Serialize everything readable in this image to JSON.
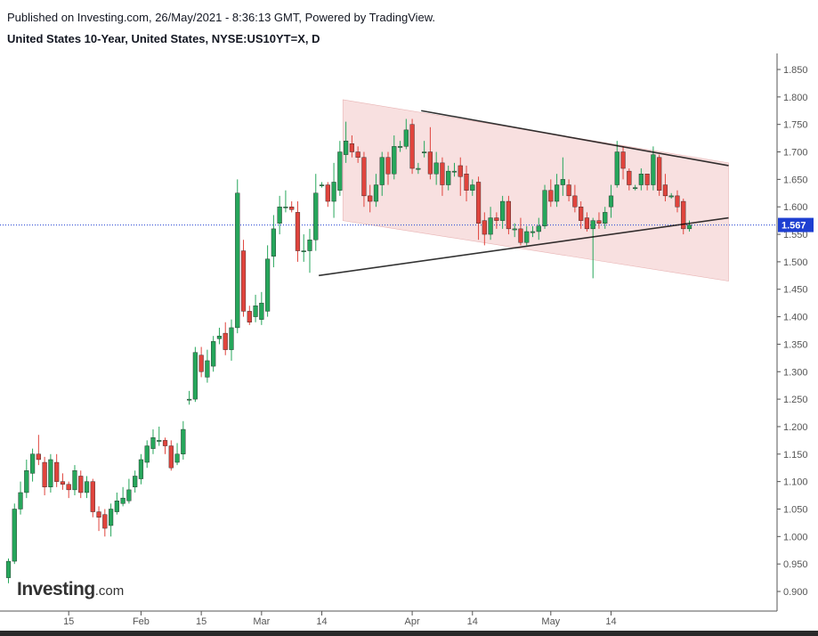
{
  "header": {
    "published_line": "Published on Investing.com, 26/May/2021 - 8:36:13 GMT, Powered by TradingView.",
    "symbol_line": "United States 10-Year, United States, NYSE:US10YT=X, D"
  },
  "logo": {
    "word": "Investing",
    "suffix": ".com"
  },
  "colors": {
    "up": "#26a65b",
    "down": "#e0443d",
    "channel_fill": "#f5d5d5",
    "price_line": "#1e3fd1",
    "price_label_bg": "#1e3fd1",
    "trendline": "#000000",
    "axis_text": "#555555"
  },
  "chart_data": {
    "type": "candlestick",
    "title": "United States 10-Year, United States, NYSE:US10YT=X, D",
    "ylim": [
      0.88,
      1.87
    ],
    "y_ticks": [
      0.9,
      0.95,
      1.0,
      1.05,
      1.1,
      1.15,
      1.2,
      1.25,
      1.3,
      1.35,
      1.4,
      1.45,
      1.5,
      1.55,
      1.6,
      1.65,
      1.7,
      1.75,
      1.8,
      1.85
    ],
    "y_tick_labels": [
      "0.900",
      "0.950",
      "1.000",
      "1.050",
      "1.100",
      "1.150",
      "1.200",
      "1.250",
      "1.300",
      "1.350",
      "1.400",
      "1.450",
      "1.500",
      "1.550",
      "1.600",
      "1.650",
      "1.700",
      "1.750",
      "1.800",
      "1.850"
    ],
    "x_ticks": [
      {
        "label": "15",
        "index": 10
      },
      {
        "label": "Feb",
        "index": 22
      },
      {
        "label": "15",
        "index": 32
      },
      {
        "label": "Mar",
        "index": 42
      },
      {
        "label": "14",
        "index": 52
      },
      {
        "label": "Apr",
        "index": 67
      },
      {
        "label": "14",
        "index": 77
      },
      {
        "label": "May",
        "index": 90
      },
      {
        "label": "14",
        "index": 100
      }
    ],
    "last_price": 1.567,
    "last_price_label": "1.567",
    "candles": [
      [
        0.925,
        0.955,
        0.915,
        0.96
      ],
      [
        0.955,
        1.05,
        0.95,
        1.06
      ],
      [
        1.05,
        1.08,
        1.04,
        1.1
      ],
      [
        1.08,
        1.12,
        1.07,
        1.14
      ],
      [
        1.115,
        1.15,
        1.1,
        1.16
      ],
      [
        1.15,
        1.14,
        1.13,
        1.185
      ],
      [
        1.135,
        1.09,
        1.075,
        1.145
      ],
      [
        1.09,
        1.14,
        1.08,
        1.15
      ],
      [
        1.135,
        1.1,
        1.09,
        1.15
      ],
      [
        1.1,
        1.095,
        1.085,
        1.115
      ],
      [
        1.095,
        1.085,
        1.07,
        1.1
      ],
      [
        1.085,
        1.12,
        1.075,
        1.13
      ],
      [
        1.11,
        1.08,
        1.07,
        1.12
      ],
      [
        1.08,
        1.1,
        1.07,
        1.11
      ],
      [
        1.1,
        1.045,
        1.035,
        1.105
      ],
      [
        1.045,
        1.035,
        1.01,
        1.055
      ],
      [
        1.04,
        1.015,
        1.0,
        1.05
      ],
      [
        1.02,
        1.05,
        1.0,
        1.06
      ],
      [
        1.045,
        1.065,
        1.04,
        1.08
      ],
      [
        1.06,
        1.07,
        1.055,
        1.09
      ],
      [
        1.065,
        1.085,
        1.06,
        1.105
      ],
      [
        1.09,
        1.11,
        1.08,
        1.12
      ],
      [
        1.105,
        1.14,
        1.095,
        1.15
      ],
      [
        1.135,
        1.165,
        1.125,
        1.175
      ],
      [
        1.16,
        1.18,
        1.15,
        1.195
      ],
      [
        1.175,
        1.175,
        1.165,
        1.2
      ],
      [
        1.175,
        1.165,
        1.15,
        1.18
      ],
      [
        1.165,
        1.125,
        1.12,
        1.175
      ],
      [
        1.135,
        1.15,
        1.13,
        1.17
      ],
      [
        1.15,
        1.195,
        1.14,
        1.21
      ],
      [
        1.25,
        1.25,
        1.24,
        1.265
      ],
      [
        1.25,
        1.335,
        1.245,
        1.345
      ],
      [
        1.33,
        1.3,
        1.29,
        1.345
      ],
      [
        1.29,
        1.32,
        1.28,
        1.34
      ],
      [
        1.31,
        1.355,
        1.3,
        1.365
      ],
      [
        1.36,
        1.365,
        1.35,
        1.38
      ],
      [
        1.37,
        1.34,
        1.33,
        1.39
      ],
      [
        1.34,
        1.38,
        1.32,
        1.395
      ],
      [
        1.38,
        1.625,
        1.37,
        1.65
      ],
      [
        1.52,
        1.41,
        1.4,
        1.54
      ],
      [
        1.41,
        1.39,
        1.385,
        1.42
      ],
      [
        1.4,
        1.42,
        1.39,
        1.44
      ],
      [
        1.395,
        1.425,
        1.385,
        1.445
      ],
      [
        1.41,
        1.505,
        1.4,
        1.53
      ],
      [
        1.51,
        1.56,
        1.49,
        1.585
      ],
      [
        1.57,
        1.6,
        1.55,
        1.62
      ],
      [
        1.6,
        1.6,
        1.59,
        1.63
      ],
      [
        1.6,
        1.595,
        1.59,
        1.61
      ],
      [
        1.59,
        1.52,
        1.5,
        1.61
      ],
      [
        1.52,
        1.52,
        1.5,
        1.55
      ],
      [
        1.52,
        1.54,
        1.48,
        1.56
      ],
      [
        1.54,
        1.625,
        1.52,
        1.66
      ],
      [
        1.64,
        1.64,
        1.635,
        1.645
      ],
      [
        1.64,
        1.61,
        1.6,
        1.645
      ],
      [
        1.61,
        1.645,
        1.58,
        1.68
      ],
      [
        1.63,
        1.7,
        1.62,
        1.72
      ],
      [
        1.695,
        1.72,
        1.68,
        1.755
      ],
      [
        1.715,
        1.7,
        1.69,
        1.73
      ],
      [
        1.7,
        1.69,
        1.68,
        1.71
      ],
      [
        1.69,
        1.62,
        1.6,
        1.7
      ],
      [
        1.62,
        1.61,
        1.59,
        1.64
      ],
      [
        1.61,
        1.64,
        1.6,
        1.66
      ],
      [
        1.64,
        1.69,
        1.62,
        1.7
      ],
      [
        1.69,
        1.66,
        1.64,
        1.7
      ],
      [
        1.66,
        1.71,
        1.65,
        1.73
      ],
      [
        1.71,
        1.71,
        1.7,
        1.72
      ],
      [
        1.71,
        1.74,
        1.705,
        1.76
      ],
      [
        1.75,
        1.67,
        1.66,
        1.76
      ],
      [
        1.67,
        1.67,
        1.66,
        1.68
      ],
      [
        1.7,
        1.7,
        1.69,
        1.72
      ],
      [
        1.7,
        1.66,
        1.65,
        1.745
      ],
      [
        1.66,
        1.68,
        1.64,
        1.7
      ],
      [
        1.68,
        1.64,
        1.62,
        1.69
      ],
      [
        1.64,
        1.665,
        1.63,
        1.675
      ],
      [
        1.665,
        1.665,
        1.655,
        1.68
      ],
      [
        1.675,
        1.655,
        1.62,
        1.69
      ],
      [
        1.66,
        1.63,
        1.61,
        1.675
      ],
      [
        1.63,
        1.64,
        1.62,
        1.65
      ],
      [
        1.645,
        1.57,
        1.54,
        1.655
      ],
      [
        1.575,
        1.55,
        1.53,
        1.59
      ],
      [
        1.55,
        1.58,
        1.54,
        1.6
      ],
      [
        1.58,
        1.575,
        1.56,
        1.59
      ],
      [
        1.575,
        1.61,
        1.56,
        1.62
      ],
      [
        1.61,
        1.56,
        1.55,
        1.62
      ],
      [
        1.56,
        1.56,
        1.545,
        1.57
      ],
      [
        1.56,
        1.535,
        1.53,
        1.58
      ],
      [
        1.535,
        1.555,
        1.53,
        1.565
      ],
      [
        1.555,
        1.555,
        1.545,
        1.565
      ],
      [
        1.555,
        1.565,
        1.54,
        1.58
      ],
      [
        1.565,
        1.63,
        1.56,
        1.64
      ],
      [
        1.63,
        1.61,
        1.6,
        1.65
      ],
      [
        1.61,
        1.64,
        1.6,
        1.66
      ],
      [
        1.64,
        1.65,
        1.62,
        1.69
      ],
      [
        1.64,
        1.62,
        1.61,
        1.65
      ],
      [
        1.62,
        1.6,
        1.59,
        1.64
      ],
      [
        1.6,
        1.575,
        1.56,
        1.61
      ],
      [
        1.58,
        1.56,
        1.555,
        1.59
      ],
      [
        1.56,
        1.575,
        1.47,
        1.58
      ],
      [
        1.575,
        1.57,
        1.56,
        1.59
      ],
      [
        1.57,
        1.59,
        1.56,
        1.6
      ],
      [
        1.6,
        1.62,
        1.58,
        1.64
      ],
      [
        1.64,
        1.7,
        1.635,
        1.72
      ],
      [
        1.7,
        1.67,
        1.65,
        1.71
      ],
      [
        1.665,
        1.64,
        1.63,
        1.67
      ],
      [
        1.635,
        1.635,
        1.63,
        1.64
      ],
      [
        1.64,
        1.66,
        1.63,
        1.67
      ],
      [
        1.66,
        1.64,
        1.63,
        1.66
      ],
      [
        1.64,
        1.695,
        1.63,
        1.71
      ],
      [
        1.69,
        1.63,
        1.62,
        1.695
      ],
      [
        1.64,
        1.62,
        1.61,
        1.66
      ],
      [
        1.62,
        1.62,
        1.615,
        1.625
      ],
      [
        1.62,
        1.6,
        1.59,
        1.63
      ],
      [
        1.61,
        1.56,
        1.55,
        1.615
      ],
      [
        1.56,
        1.567,
        1.555,
        1.575
      ]
    ],
    "annotations": {
      "channel": {
        "start_index": 55.5,
        "end_index": 119.5,
        "upper": [
          1.795,
          1.68
        ],
        "lower": [
          1.575,
          1.465
        ]
      },
      "upper_trendline": {
        "from": [
          68.5,
          1.775
        ],
        "to": [
          119.5,
          1.675
        ]
      },
      "lower_trendline": {
        "from": [
          51.5,
          1.475
        ],
        "to": [
          119.5,
          1.58
        ]
      },
      "price_line": 1.567
    }
  }
}
